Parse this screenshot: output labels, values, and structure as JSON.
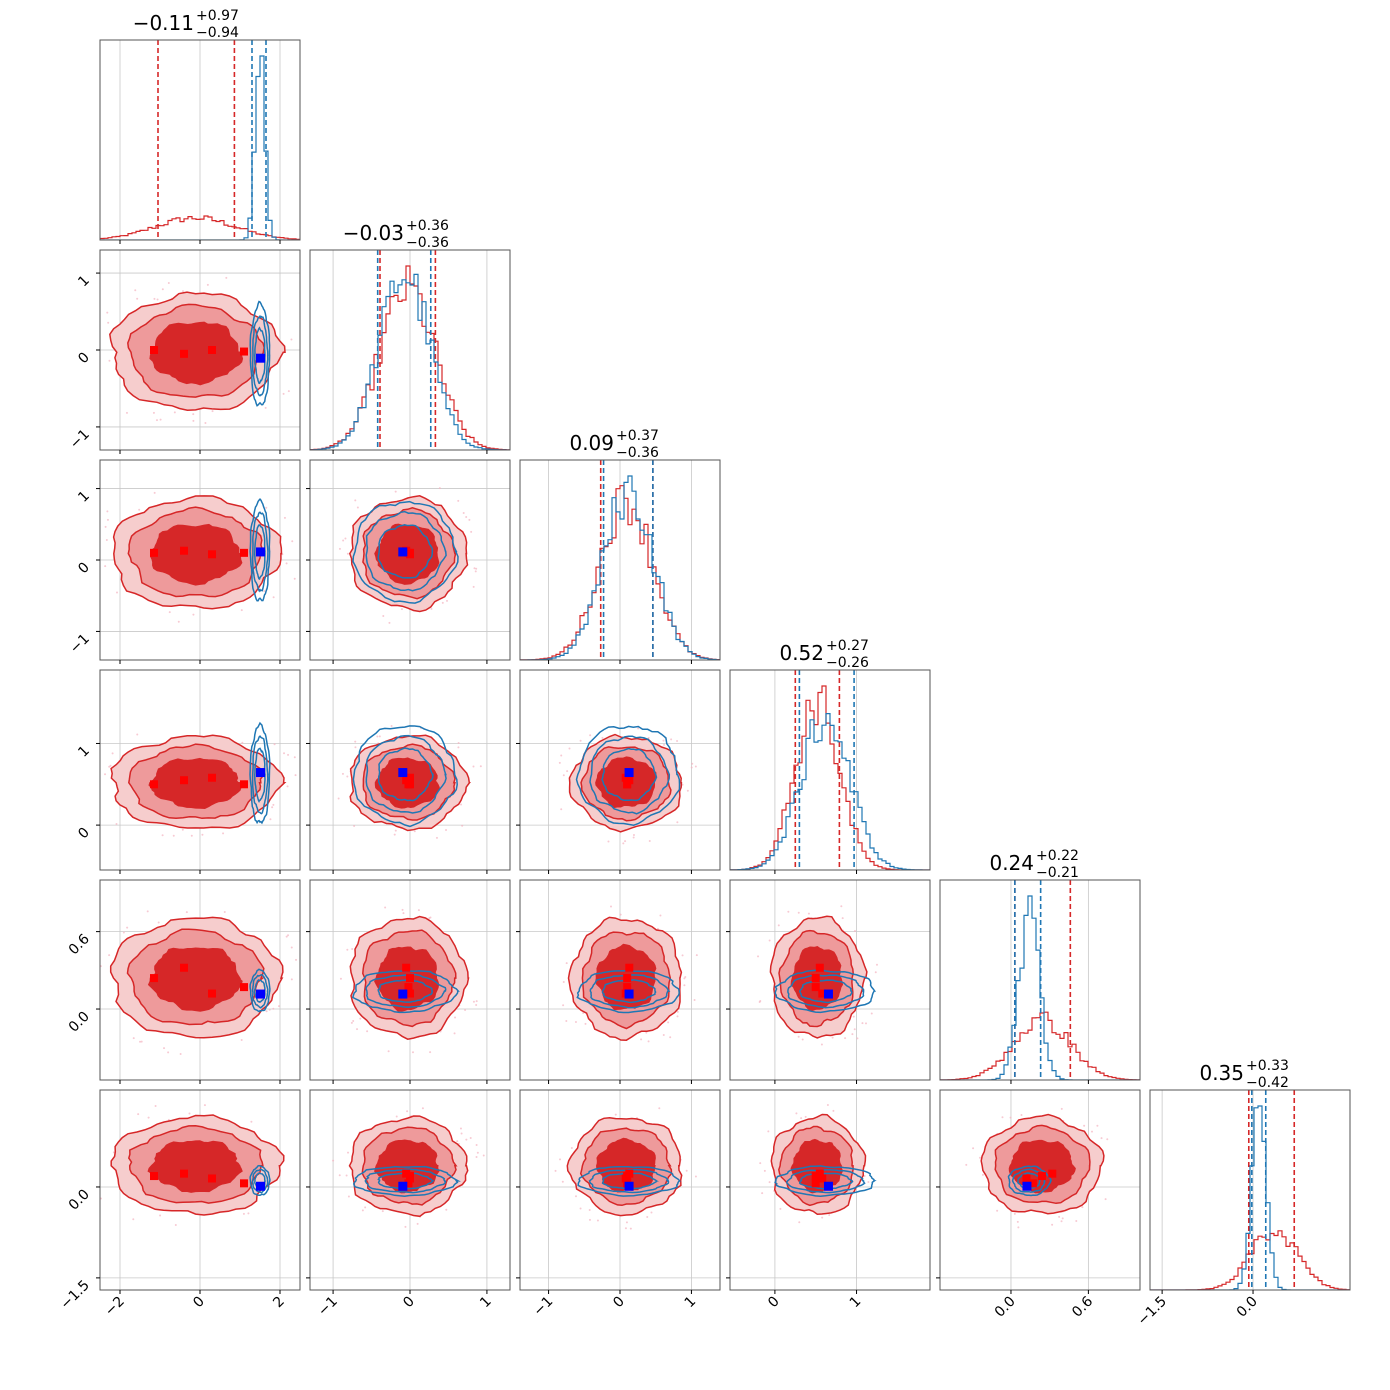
{
  "chart_data": {
    "type": "corner",
    "n_params": 6,
    "grid": true,
    "colors": {
      "red": "#d62728",
      "red_light": "#ee9a9b",
      "red_lighter": "#f6cdcd",
      "blue": "#1f77b4",
      "truth_red": "#ff0000",
      "truth_blue": "#0000ff",
      "grid": "#c8c8c8",
      "frame": "#555555"
    },
    "titles": [
      {
        "value": "−0.11",
        "plus": "+0.97",
        "minus": "−0.94"
      },
      {
        "value": "−0.03",
        "plus": "+0.36",
        "minus": "−0.36"
      },
      {
        "value": "0.09",
        "plus": "+0.37",
        "minus": "−0.36"
      },
      {
        "value": "0.52",
        "plus": "+0.27",
        "minus": "−0.26"
      },
      {
        "value": "0.24",
        "plus": "+0.22",
        "minus": "−0.21"
      },
      {
        "value": "0.35",
        "plus": "+0.33",
        "minus": "−0.42"
      }
    ],
    "ranges": [
      [
        -2.5,
        2.5
      ],
      [
        -1.3,
        1.3
      ],
      [
        -1.4,
        1.4
      ],
      [
        -0.55,
        1.9
      ],
      [
        -0.55,
        1.0
      ],
      [
        -1.7,
        1.6
      ]
    ],
    "ticks": [
      {
        "values": [
          -2,
          0,
          2
        ],
        "labels": [
          "−2",
          "0",
          "2"
        ]
      },
      {
        "values": [
          -1,
          0,
          1
        ],
        "labels": [
          "−1",
          "0",
          "1"
        ]
      },
      {
        "values": [
          -1,
          0,
          1
        ],
        "labels": [
          "−1",
          "0",
          "1"
        ]
      },
      {
        "values": [
          0,
          1
        ],
        "labels": [
          "0",
          "1"
        ]
      },
      {
        "values": [
          0.0,
          0.6
        ],
        "labels": [
          "0.0",
          "0.6"
        ]
      },
      {
        "values": [
          -1.5,
          0.0
        ],
        "labels": [
          "−1.5",
          "0.0"
        ]
      }
    ],
    "series": [
      {
        "color_key": "red",
        "means": [
          -0.11,
          -0.03,
          0.09,
          0.52,
          0.24,
          0.35
        ],
        "sigmas": [
          1.0,
          0.36,
          0.37,
          0.27,
          0.22,
          0.38
        ],
        "quantiles": [
          [
            -1.05,
            0.86
          ],
          [
            -0.39,
            0.33
          ],
          [
            -0.27,
            0.46
          ],
          [
            0.25,
            0.79
          ],
          [
            0.03,
            0.46
          ],
          [
            -0.07,
            0.68
          ]
        ]
      },
      {
        "color_key": "blue",
        "means": [
          1.5,
          -0.07,
          0.12,
          0.62,
          0.14,
          0.1
        ],
        "sigmas": [
          0.12,
          0.33,
          0.35,
          0.3,
          0.08,
          0.12
        ],
        "quantiles": [
          [
            1.3,
            1.65
          ],
          [
            -0.42,
            0.27
          ],
          [
            -0.23,
            0.46
          ],
          [
            0.3,
            0.97
          ],
          [
            0.03,
            0.23
          ],
          [
            -0.02,
            0.21
          ]
        ]
      }
    ],
    "truth_blue": [
      1.5,
      -0.1,
      0.12,
      0.65,
      0.12,
      0.02
    ],
    "truth_red_points": [
      [
        -1.15,
        -0.4,
        0.3,
        1.1
      ],
      [
        0.0,
        -0.05,
        0.0,
        -0.02
      ],
      [
        0.1,
        0.13,
        0.08,
        0.1
      ],
      [
        0.5,
        0.55,
        0.58,
        0.5
      ],
      [
        0.24,
        0.32,
        0.12,
        0.17
      ],
      [
        0.18,
        0.22,
        0.14,
        0.06
      ]
    ]
  }
}
